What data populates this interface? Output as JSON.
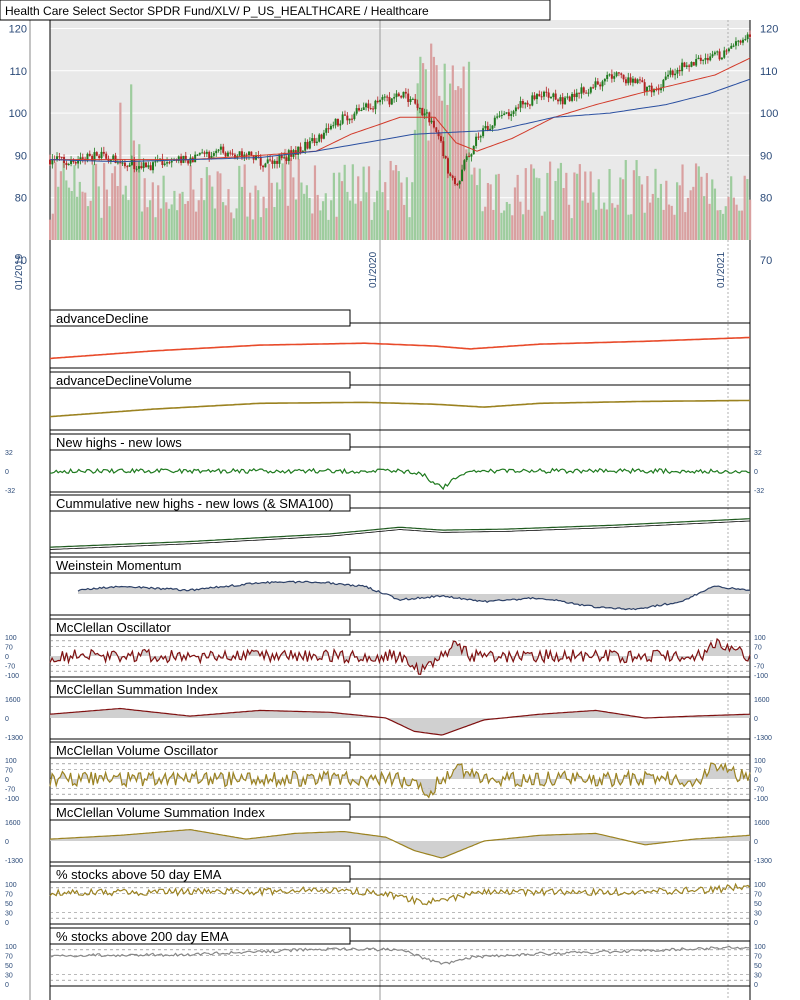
{
  "chart_data": {
    "type": "line",
    "title": "Health Care Select Sector SPDR Fund/XLV/ P_US_HEALTHCARE / Healthcare",
    "colors": {
      "plot_bg": "#e9e9e9",
      "up": "#1f7a1f",
      "down": "#b22222",
      "vol_up": "#9dcc9d",
      "vol_down": "#d9a0a0",
      "ema_red": "#d23a2a",
      "sma_blue": "#2a4fa0",
      "olive": "#9b8220",
      "ad_red": "#e84a2a",
      "green": "#1f7a1f",
      "navy": "#2b3f66",
      "maroon": "#7f1010",
      "grey": "#888888"
    },
    "x_labels": [
      "01/2019",
      "01/2020",
      "01/2021"
    ],
    "price_panel": {
      "y_ticks": [
        70,
        80,
        90,
        100,
        110,
        120
      ],
      "ylim": [
        70,
        122
      ],
      "close_points": [
        [
          0,
          89
        ],
        [
          0.03,
          88
        ],
        [
          0.06,
          90
        ],
        [
          0.1,
          89
        ],
        [
          0.13,
          87
        ],
        [
          0.16,
          88.5
        ],
        [
          0.2,
          89
        ],
        [
          0.24,
          91
        ],
        [
          0.28,
          90
        ],
        [
          0.31,
          88
        ],
        [
          0.34,
          90
        ],
        [
          0.38,
          94
        ],
        [
          0.42,
          99
        ],
        [
          0.45,
          101
        ],
        [
          0.48,
          103
        ],
        [
          0.51,
          104
        ],
        [
          0.53,
          101
        ],
        [
          0.55,
          97
        ],
        [
          0.56,
          92
        ],
        [
          0.57,
          86
        ],
        [
          0.58,
          82
        ],
        [
          0.59,
          87
        ],
        [
          0.61,
          94
        ],
        [
          0.63,
          97
        ],
        [
          0.66,
          101
        ],
        [
          0.7,
          104
        ],
        [
          0.74,
          103
        ],
        [
          0.78,
          107
        ],
        [
          0.81,
          109
        ],
        [
          0.84,
          107
        ],
        [
          0.86,
          105
        ],
        [
          0.88,
          108
        ],
        [
          0.9,
          111
        ],
        [
          0.93,
          113
        ],
        [
          0.96,
          114
        ],
        [
          1,
          118
        ]
      ],
      "ema_points": [
        [
          0,
          89
        ],
        [
          0.1,
          89
        ],
        [
          0.2,
          89
        ],
        [
          0.3,
          90
        ],
        [
          0.38,
          91
        ],
        [
          0.43,
          95
        ],
        [
          0.5,
          99
        ],
        [
          0.55,
          99
        ],
        [
          0.58,
          93
        ],
        [
          0.61,
          91
        ],
        [
          0.66,
          94
        ],
        [
          0.72,
          99
        ],
        [
          0.78,
          102
        ],
        [
          0.85,
          105
        ],
        [
          0.9,
          107
        ],
        [
          0.95,
          109
        ],
        [
          1,
          113
        ]
      ],
      "sma_points": [
        [
          0,
          89
        ],
        [
          0.1,
          88.5
        ],
        [
          0.2,
          89
        ],
        [
          0.3,
          89.5
        ],
        [
          0.38,
          91
        ],
        [
          0.45,
          93
        ],
        [
          0.52,
          95
        ],
        [
          0.58,
          95.5
        ],
        [
          0.64,
          96
        ],
        [
          0.72,
          99
        ],
        [
          0.8,
          100
        ],
        [
          0.88,
          102
        ],
        [
          0.94,
          104.5
        ],
        [
          1,
          108
        ]
      ]
    },
    "indicators": [
      {
        "title": "advanceDecline",
        "color": "#e84a2a",
        "kind": "line",
        "points": [
          [
            0,
            -0.6
          ],
          [
            0.15,
            -0.2
          ],
          [
            0.3,
            0.1
          ],
          [
            0.45,
            0.2
          ],
          [
            0.55,
            0.05
          ],
          [
            0.6,
            -0.1
          ],
          [
            0.7,
            0.15
          ],
          [
            0.85,
            0.3
          ],
          [
            1,
            0.5
          ]
        ]
      },
      {
        "title": "advanceDeclineVolume",
        "color": "#9b8220",
        "kind": "line",
        "points": [
          [
            0,
            -0.4
          ],
          [
            0.15,
            0.0
          ],
          [
            0.3,
            0.3
          ],
          [
            0.45,
            0.35
          ],
          [
            0.55,
            0.25
          ],
          [
            0.62,
            0.1
          ],
          [
            0.7,
            0.3
          ],
          [
            0.85,
            0.4
          ],
          [
            1,
            0.45
          ]
        ]
      },
      {
        "title": "New highs - new lows",
        "color": "#1f7a1f",
        "kind": "noisy",
        "ticks": [
          "32",
          "0",
          "-32"
        ],
        "points": [
          [
            0,
            0
          ],
          [
            0.5,
            0
          ],
          [
            0.53,
            -0.1
          ],
          [
            0.56,
            -0.9
          ],
          [
            0.58,
            -0.4
          ],
          [
            0.6,
            0
          ],
          [
            1,
            0
          ]
        ],
        "noise": 0.12
      },
      {
        "title": "Cummulative new highs - new lows (& SMA100)",
        "color": "#1f5a1f",
        "kind": "cum",
        "points": [
          [
            0,
            -0.8
          ],
          [
            0.2,
            -0.5
          ],
          [
            0.4,
            -0.1
          ],
          [
            0.5,
            0.25
          ],
          [
            0.56,
            0.1
          ],
          [
            0.65,
            0.15
          ],
          [
            0.8,
            0.35
          ],
          [
            1,
            0.7
          ]
        ]
      },
      {
        "title": "Weinstein Momentum",
        "color": "#2b3f66",
        "kind": "filled",
        "points": [
          [
            0.04,
            0.2
          ],
          [
            0.1,
            0.4
          ],
          [
            0.2,
            0.2
          ],
          [
            0.3,
            0.6
          ],
          [
            0.38,
            0.65
          ],
          [
            0.45,
            0.4
          ],
          [
            0.5,
            -0.3
          ],
          [
            0.56,
            -0.1
          ],
          [
            0.62,
            -0.4
          ],
          [
            0.7,
            -0.2
          ],
          [
            0.78,
            -0.7
          ],
          [
            0.84,
            -0.8
          ],
          [
            0.9,
            -0.4
          ],
          [
            0.95,
            0.4
          ],
          [
            1,
            0.2
          ]
        ],
        "noise": 0.05
      },
      {
        "title": "McClellan Oscillator",
        "color": "#7f1010",
        "kind": "osc",
        "ticks": [
          "100",
          "70",
          "0",
          "-70",
          "-100"
        ],
        "points": [
          [
            0,
            0
          ],
          [
            0.5,
            0
          ],
          [
            0.52,
            -0.8
          ],
          [
            0.55,
            -0.3
          ],
          [
            0.58,
            0.7
          ],
          [
            0.6,
            0
          ],
          [
            0.93,
            0
          ],
          [
            0.95,
            0.6
          ],
          [
            1,
            0
          ]
        ],
        "noise": 0.35
      },
      {
        "title": "McClellan Summation Index",
        "color": "#7f1010",
        "kind": "filled",
        "ticks": [
          "1600",
          "0",
          "-1300"
        ],
        "points": [
          [
            0,
            0.2
          ],
          [
            0.1,
            0.5
          ],
          [
            0.2,
            0.1
          ],
          [
            0.3,
            0.4
          ],
          [
            0.4,
            0.3
          ],
          [
            0.48,
            0.0
          ],
          [
            0.52,
            -0.7
          ],
          [
            0.56,
            -0.9
          ],
          [
            0.62,
            -0.1
          ],
          [
            0.7,
            0.2
          ],
          [
            0.78,
            0.4
          ],
          [
            0.85,
            0.0
          ],
          [
            0.92,
            0.1
          ],
          [
            1,
            0.2
          ]
        ],
        "noise": 0.0
      },
      {
        "title": "McClellan Volume Oscillator",
        "color": "#9b8220",
        "kind": "osc",
        "ticks": [
          "100",
          "70",
          "0",
          "-70",
          "-100"
        ],
        "points": [
          [
            0,
            0
          ],
          [
            0.5,
            0
          ],
          [
            0.54,
            -0.7
          ],
          [
            0.58,
            0.7
          ],
          [
            0.62,
            0
          ],
          [
            0.93,
            0
          ],
          [
            0.95,
            0.7
          ],
          [
            1,
            0
          ]
        ],
        "noise": 0.4
      },
      {
        "title": "McClellan Volume Summation Index",
        "color": "#9b8220",
        "kind": "filled",
        "ticks": [
          "1600",
          "0",
          "-1300"
        ],
        "points": [
          [
            0,
            0.1
          ],
          [
            0.1,
            0.3
          ],
          [
            0.2,
            0.6
          ],
          [
            0.28,
            0.1
          ],
          [
            0.35,
            0.4
          ],
          [
            0.42,
            0.5
          ],
          [
            0.48,
            0.2
          ],
          [
            0.52,
            -0.5
          ],
          [
            0.56,
            -0.9
          ],
          [
            0.62,
            0.0
          ],
          [
            0.7,
            0.3
          ],
          [
            0.78,
            0.4
          ],
          [
            0.85,
            -0.2
          ],
          [
            0.92,
            0.1
          ],
          [
            1,
            0.3
          ]
        ],
        "noise": 0.0
      },
      {
        "title": "% stocks above 50 day EMA",
        "color": "#9b8220",
        "kind": "pct",
        "ticks": [
          "100",
          "70",
          "50",
          "30",
          "0"
        ],
        "points": [
          [
            0,
            0.55
          ],
          [
            0.3,
            0.6
          ],
          [
            0.4,
            0.7
          ],
          [
            0.48,
            0.5
          ],
          [
            0.53,
            0.05
          ],
          [
            0.57,
            0.2
          ],
          [
            0.62,
            0.6
          ],
          [
            0.8,
            0.55
          ],
          [
            0.95,
            0.7
          ],
          [
            1,
            0.9
          ]
        ],
        "noise": 0.18
      },
      {
        "title": "% stocks above 200 day EMA",
        "color": "#888888",
        "kind": "pct",
        "ticks": [
          "100",
          "70",
          "50",
          "30",
          "0"
        ],
        "points": [
          [
            0,
            0.5
          ],
          [
            0.2,
            0.55
          ],
          [
            0.4,
            0.85
          ],
          [
            0.5,
            0.8
          ],
          [
            0.54,
            0.3
          ],
          [
            0.56,
            0.05
          ],
          [
            0.6,
            0.4
          ],
          [
            0.7,
            0.6
          ],
          [
            0.85,
            0.75
          ],
          [
            1,
            0.95
          ]
        ],
        "noise": 0.08
      }
    ]
  }
}
